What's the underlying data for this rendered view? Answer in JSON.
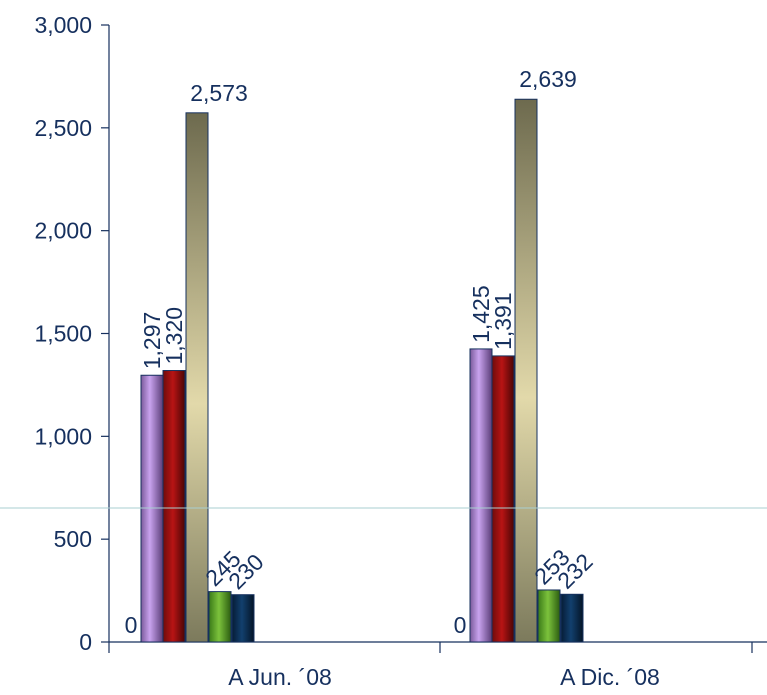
{
  "chart_data": {
    "type": "bar",
    "categories": [
      "A Jun. ´08",
      "A Dic. ´08"
    ],
    "series": [
      {
        "values": [
          0,
          0
        ],
        "data_labels": [
          "0",
          "0"
        ]
      },
      {
        "values": [
          1297,
          1425
        ],
        "data_labels": [
          "1,297",
          "1,425"
        ],
        "color": "#b58ed8"
      },
      {
        "values": [
          1320,
          1391
        ],
        "data_labels": [
          "1,320",
          "1,391"
        ],
        "color": "#9e1010"
      },
      {
        "values": [
          2573,
          2639
        ],
        "data_labels": [
          "2,573",
          "2,639"
        ],
        "color": "#cfc69a"
      },
      {
        "values": [
          245,
          253
        ],
        "data_labels": [
          "245",
          "253"
        ],
        "color": "#5da328"
      },
      {
        "values": [
          230,
          232
        ],
        "data_labels": [
          "230",
          "232"
        ],
        "color": "#0b2d52"
      }
    ],
    "title": "",
    "xlabel": "",
    "ylabel": "",
    "ylim": [
      0,
      3000
    ],
    "yticks": [
      0,
      500,
      1000,
      1500,
      2000,
      2500,
      3000
    ],
    "ytick_labels": [
      "0",
      "500",
      "1,000",
      "1,500",
      "2,000",
      "2,500",
      "3,000"
    ],
    "grid": false,
    "legend": "none",
    "reference_line_color": "#a9cfd0"
  }
}
